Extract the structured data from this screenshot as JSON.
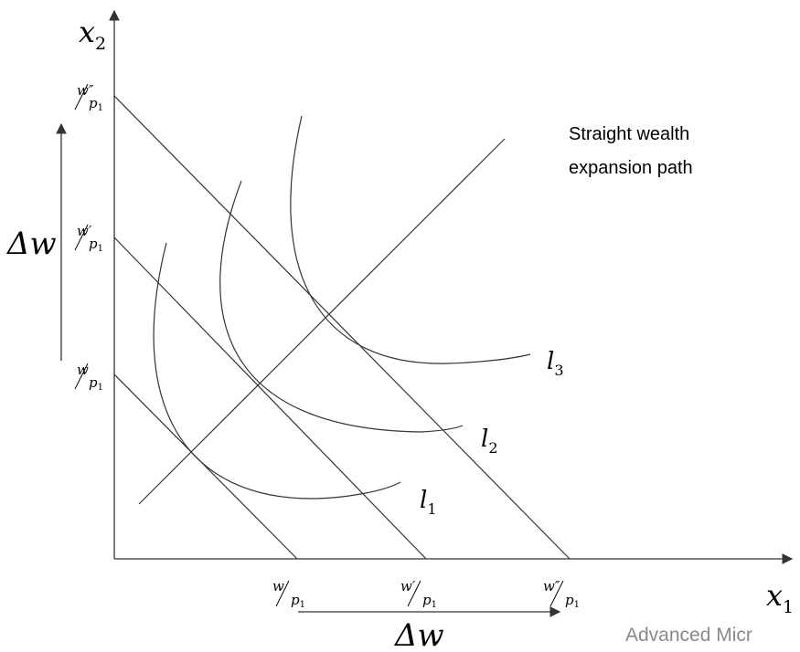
{
  "axes": {
    "x_symbol": "x",
    "x_subscript": "1",
    "y_symbol": "x",
    "y_subscript": "2"
  },
  "intercepts": {
    "y": [
      {
        "num": "w",
        "den": "p",
        "den_sub": "1"
      },
      {
        "num": "w′",
        "den": "p",
        "den_sub": "1"
      },
      {
        "num": "w″",
        "den": "p",
        "den_sub": "1"
      }
    ],
    "x": [
      {
        "num": "w",
        "den": "p",
        "den_sub": "1"
      },
      {
        "num": "w′",
        "den": "p",
        "den_sub": "1"
      },
      {
        "num": "w″",
        "den": "p",
        "den_sub": "1"
      }
    ]
  },
  "delta_labels": {
    "vertical": "Δw",
    "horizontal": "Δw"
  },
  "curves": [
    {
      "letter": "l",
      "sub": "1"
    },
    {
      "letter": "l",
      "sub": "2"
    },
    {
      "letter": "l",
      "sub": "3"
    }
  ],
  "path_label": [
    "Straight wealth",
    "expansion path"
  ],
  "footer": "Advanced Micr"
}
